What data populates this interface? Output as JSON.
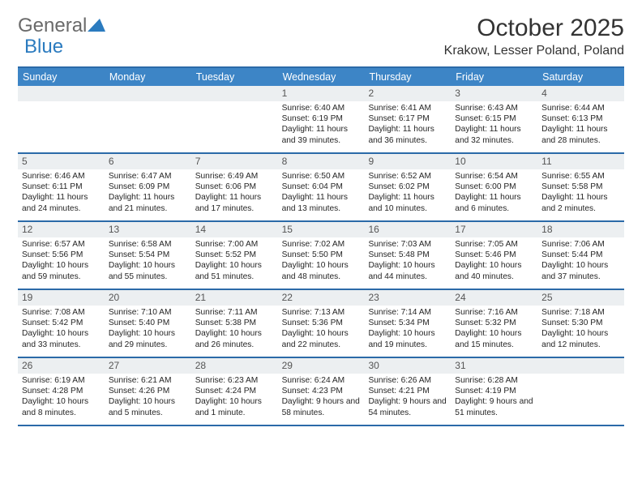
{
  "brand": {
    "part1": "General",
    "part2": "Blue"
  },
  "title": "October 2025",
  "location": "Krakow, Lesser Poland, Poland",
  "colors": {
    "header_bg": "#3d85c6",
    "header_text": "#ffffff",
    "divider": "#2b6aa8",
    "daynum_bg": "#eceff1",
    "body_text": "#252525"
  },
  "dow": [
    "Sunday",
    "Monday",
    "Tuesday",
    "Wednesday",
    "Thursday",
    "Friday",
    "Saturday"
  ],
  "weeks": [
    [
      {
        "n": "",
        "sr": "",
        "ss": "",
        "dl": ""
      },
      {
        "n": "",
        "sr": "",
        "ss": "",
        "dl": ""
      },
      {
        "n": "",
        "sr": "",
        "ss": "",
        "dl": ""
      },
      {
        "n": "1",
        "sr": "Sunrise: 6:40 AM",
        "ss": "Sunset: 6:19 PM",
        "dl": "Daylight: 11 hours and 39 minutes."
      },
      {
        "n": "2",
        "sr": "Sunrise: 6:41 AM",
        "ss": "Sunset: 6:17 PM",
        "dl": "Daylight: 11 hours and 36 minutes."
      },
      {
        "n": "3",
        "sr": "Sunrise: 6:43 AM",
        "ss": "Sunset: 6:15 PM",
        "dl": "Daylight: 11 hours and 32 minutes."
      },
      {
        "n": "4",
        "sr": "Sunrise: 6:44 AM",
        "ss": "Sunset: 6:13 PM",
        "dl": "Daylight: 11 hours and 28 minutes."
      }
    ],
    [
      {
        "n": "5",
        "sr": "Sunrise: 6:46 AM",
        "ss": "Sunset: 6:11 PM",
        "dl": "Daylight: 11 hours and 24 minutes."
      },
      {
        "n": "6",
        "sr": "Sunrise: 6:47 AM",
        "ss": "Sunset: 6:09 PM",
        "dl": "Daylight: 11 hours and 21 minutes."
      },
      {
        "n": "7",
        "sr": "Sunrise: 6:49 AM",
        "ss": "Sunset: 6:06 PM",
        "dl": "Daylight: 11 hours and 17 minutes."
      },
      {
        "n": "8",
        "sr": "Sunrise: 6:50 AM",
        "ss": "Sunset: 6:04 PM",
        "dl": "Daylight: 11 hours and 13 minutes."
      },
      {
        "n": "9",
        "sr": "Sunrise: 6:52 AM",
        "ss": "Sunset: 6:02 PM",
        "dl": "Daylight: 11 hours and 10 minutes."
      },
      {
        "n": "10",
        "sr": "Sunrise: 6:54 AM",
        "ss": "Sunset: 6:00 PM",
        "dl": "Daylight: 11 hours and 6 minutes."
      },
      {
        "n": "11",
        "sr": "Sunrise: 6:55 AM",
        "ss": "Sunset: 5:58 PM",
        "dl": "Daylight: 11 hours and 2 minutes."
      }
    ],
    [
      {
        "n": "12",
        "sr": "Sunrise: 6:57 AM",
        "ss": "Sunset: 5:56 PM",
        "dl": "Daylight: 10 hours and 59 minutes."
      },
      {
        "n": "13",
        "sr": "Sunrise: 6:58 AM",
        "ss": "Sunset: 5:54 PM",
        "dl": "Daylight: 10 hours and 55 minutes."
      },
      {
        "n": "14",
        "sr": "Sunrise: 7:00 AM",
        "ss": "Sunset: 5:52 PM",
        "dl": "Daylight: 10 hours and 51 minutes."
      },
      {
        "n": "15",
        "sr": "Sunrise: 7:02 AM",
        "ss": "Sunset: 5:50 PM",
        "dl": "Daylight: 10 hours and 48 minutes."
      },
      {
        "n": "16",
        "sr": "Sunrise: 7:03 AM",
        "ss": "Sunset: 5:48 PM",
        "dl": "Daylight: 10 hours and 44 minutes."
      },
      {
        "n": "17",
        "sr": "Sunrise: 7:05 AM",
        "ss": "Sunset: 5:46 PM",
        "dl": "Daylight: 10 hours and 40 minutes."
      },
      {
        "n": "18",
        "sr": "Sunrise: 7:06 AM",
        "ss": "Sunset: 5:44 PM",
        "dl": "Daylight: 10 hours and 37 minutes."
      }
    ],
    [
      {
        "n": "19",
        "sr": "Sunrise: 7:08 AM",
        "ss": "Sunset: 5:42 PM",
        "dl": "Daylight: 10 hours and 33 minutes."
      },
      {
        "n": "20",
        "sr": "Sunrise: 7:10 AM",
        "ss": "Sunset: 5:40 PM",
        "dl": "Daylight: 10 hours and 29 minutes."
      },
      {
        "n": "21",
        "sr": "Sunrise: 7:11 AM",
        "ss": "Sunset: 5:38 PM",
        "dl": "Daylight: 10 hours and 26 minutes."
      },
      {
        "n": "22",
        "sr": "Sunrise: 7:13 AM",
        "ss": "Sunset: 5:36 PM",
        "dl": "Daylight: 10 hours and 22 minutes."
      },
      {
        "n": "23",
        "sr": "Sunrise: 7:14 AM",
        "ss": "Sunset: 5:34 PM",
        "dl": "Daylight: 10 hours and 19 minutes."
      },
      {
        "n": "24",
        "sr": "Sunrise: 7:16 AM",
        "ss": "Sunset: 5:32 PM",
        "dl": "Daylight: 10 hours and 15 minutes."
      },
      {
        "n": "25",
        "sr": "Sunrise: 7:18 AM",
        "ss": "Sunset: 5:30 PM",
        "dl": "Daylight: 10 hours and 12 minutes."
      }
    ],
    [
      {
        "n": "26",
        "sr": "Sunrise: 6:19 AM",
        "ss": "Sunset: 4:28 PM",
        "dl": "Daylight: 10 hours and 8 minutes."
      },
      {
        "n": "27",
        "sr": "Sunrise: 6:21 AM",
        "ss": "Sunset: 4:26 PM",
        "dl": "Daylight: 10 hours and 5 minutes."
      },
      {
        "n": "28",
        "sr": "Sunrise: 6:23 AM",
        "ss": "Sunset: 4:24 PM",
        "dl": "Daylight: 10 hours and 1 minute."
      },
      {
        "n": "29",
        "sr": "Sunrise: 6:24 AM",
        "ss": "Sunset: 4:23 PM",
        "dl": "Daylight: 9 hours and 58 minutes."
      },
      {
        "n": "30",
        "sr": "Sunrise: 6:26 AM",
        "ss": "Sunset: 4:21 PM",
        "dl": "Daylight: 9 hours and 54 minutes."
      },
      {
        "n": "31",
        "sr": "Sunrise: 6:28 AM",
        "ss": "Sunset: 4:19 PM",
        "dl": "Daylight: 9 hours and 51 minutes."
      },
      {
        "n": "",
        "sr": "",
        "ss": "",
        "dl": ""
      }
    ]
  ]
}
